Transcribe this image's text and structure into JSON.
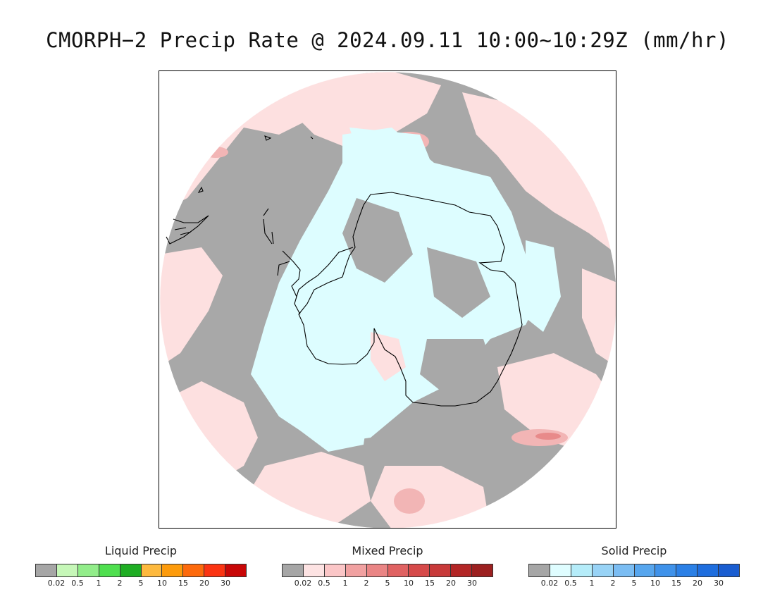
{
  "title": "CMORPH−2 Precip Rate @ 2024.09.11 10:00~10:29Z (mm/hr)",
  "map": {
    "projection": "south polar stereographic",
    "no_precip_color": "#a8a8a8",
    "colors": {
      "mixed_light": "#fde0e0",
      "mixed_mid": "#f2b5b5",
      "mixed_strong": "#e88a8a",
      "solid_light": "#ddfdff",
      "solid_mid": "#b7eef8",
      "liquid_light": "#b8f2a8",
      "coastline": "#000000"
    }
  },
  "legends": [
    {
      "title": "Liquid Precip",
      "colors": [
        "#a6a6a6",
        "#c6f7b8",
        "#92ed8a",
        "#4fdf4f",
        "#1fae24",
        "#fdb93e",
        "#fd9b0b",
        "#fd6a0c",
        "#fb3412",
        "#c80707"
      ],
      "ticks": [
        "0.02",
        "0.5",
        "1",
        "2",
        "5",
        "10",
        "15",
        "20",
        "30"
      ]
    },
    {
      "title": "Mixed Precip",
      "colors": [
        "#a6a6a6",
        "#fde3e3",
        "#fbc6c7",
        "#f1a1a1",
        "#ea8585",
        "#e06262",
        "#d64a4a",
        "#c83a3a",
        "#b32626",
        "#9c2020"
      ],
      "ticks": [
        "0.02",
        "0.5",
        "1",
        "2",
        "5",
        "10",
        "15",
        "20",
        "30"
      ]
    },
    {
      "title": "Solid Precip",
      "colors": [
        "#a6a6a6",
        "#dffdff",
        "#b5ecf9",
        "#98d3f6",
        "#7bbdf3",
        "#57a6ee",
        "#3f92ea",
        "#2b80e6",
        "#1f6ede",
        "#1a5dd0"
      ],
      "ticks": [
        "0.02",
        "0.5",
        "1",
        "2",
        "5",
        "10",
        "15",
        "20",
        "30"
      ]
    }
  ]
}
